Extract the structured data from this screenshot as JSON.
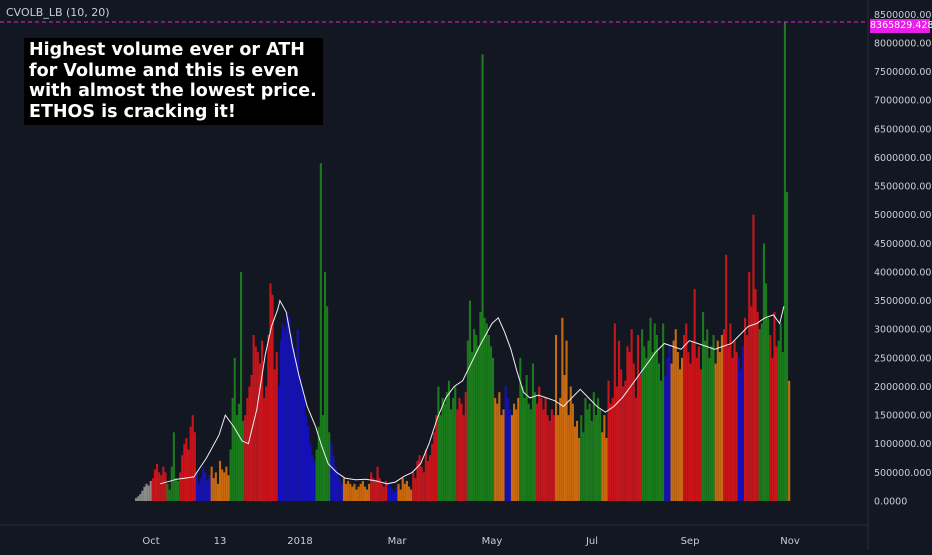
{
  "indicator": {
    "label": "CVOLB_LB (10, 20)"
  },
  "annotation": {
    "lines": [
      "Highest volume ever or ATH",
      "for Volume and this is even",
      "with almost the lowest price.",
      "ETHOS is cracking it!"
    ]
  },
  "colors": {
    "background": "#131722",
    "green": "#1b7a1b",
    "red": "#c8151b",
    "orange": "#c96a10",
    "blue": "#1511b8",
    "gray": "#8a8a8a",
    "ma_line": "#f0f0f0",
    "highlight": "#e91ee9",
    "axis_text": "#c9ccd6"
  },
  "chart_data": {
    "type": "bar",
    "ylim": [
      0,
      8400000
    ],
    "y_ticks": [
      "0.0000",
      "500000.0000",
      "1000000.0000",
      "1500000.0000",
      "2000000.0000",
      "2500000.0000",
      "3000000.0000",
      "3500000.0000",
      "4000000.0000",
      "4500000.0000",
      "5000000.0000",
      "5500000.0000",
      "6000000.0000",
      "6500000.0000",
      "7000000.0000",
      "7500000.0000",
      "8000000.0000",
      "8500000.0000"
    ],
    "x_labels": [
      "Oct",
      "13",
      "2018",
      "Mar",
      "May",
      "Jul",
      "Sep",
      "Nov"
    ],
    "last_value_label": "8365829.4288",
    "last_value": 8365829.4288,
    "bar_segments": [
      {
        "color": "gray",
        "start": 0,
        "values": [
          50000,
          80000,
          120000,
          180000,
          250000,
          300000,
          270000,
          350000
        ]
      },
      {
        "color": "red",
        "start": 8,
        "values": [
          400000,
          550000,
          650000,
          500000,
          450000,
          600000,
          500000
        ]
      },
      {
        "color": "green",
        "start": 15,
        "values": [
          300000,
          200000,
          600000,
          1200000,
          400000,
          350000
        ]
      },
      {
        "color": "red",
        "start": 21,
        "values": [
          500000,
          800000,
          1000000,
          1100000,
          900000,
          1300000,
          1500000,
          1200000
        ]
      },
      {
        "color": "blue",
        "start": 29,
        "values": [
          500000,
          300000,
          400000,
          600000,
          500000,
          350000,
          450000
        ]
      },
      {
        "color": "orange",
        "start": 36,
        "values": [
          600000,
          400000,
          500000,
          300000,
          700000,
          550000,
          500000,
          600000,
          450000
        ]
      },
      {
        "color": "green",
        "start": 45,
        "values": [
          900000,
          1800000,
          2500000,
          1500000,
          1700000,
          4000000,
          1400000
        ]
      },
      {
        "color": "red",
        "start": 52,
        "values": [
          1500000,
          1800000,
          2000000,
          2200000,
          2900000,
          2700000,
          2600000,
          2400000,
          2800000,
          1800000,
          2000000,
          2900000,
          3800000,
          3600000,
          2300000,
          2600000
        ]
      },
      {
        "color": "blue",
        "start": 68,
        "values": [
          2000000,
          2800000,
          3100000,
          3000000,
          3300000,
          3200000,
          2900000,
          2700000,
          2500000,
          3000000,
          2200000,
          2000000,
          1800000,
          1500000,
          1300000,
          1000000,
          800000,
          700000
        ]
      },
      {
        "color": "green",
        "start": 86,
        "values": [
          900000,
          1300000,
          5900000,
          1500000,
          4000000,
          3400000,
          1200000
        ]
      },
      {
        "color": "blue",
        "start": 93,
        "values": [
          1000000,
          800000,
          600000,
          500000,
          400000,
          300000
        ]
      },
      {
        "color": "orange",
        "start": 99,
        "values": [
          400000,
          300000,
          350000,
          300000,
          250000,
          300000,
          200000,
          250000,
          300000,
          350000,
          250000,
          200000,
          300000
        ]
      },
      {
        "color": "red",
        "start": 112,
        "values": [
          500000,
          400000,
          350000,
          600000,
          400000,
          300000,
          250000,
          350000
        ]
      },
      {
        "color": "blue",
        "start": 120,
        "values": [
          300000,
          250000,
          200000,
          150000,
          250000
        ]
      },
      {
        "color": "orange",
        "start": 125,
        "values": [
          300000,
          200000,
          400000,
          300000,
          350000,
          250000,
          200000
        ]
      },
      {
        "color": "red",
        "start": 132,
        "values": [
          500000,
          400000,
          700000,
          800000,
          600000,
          500000,
          900000,
          700000,
          800000,
          1000000,
          1200000,
          1500000
        ]
      },
      {
        "color": "green",
        "start": 144,
        "values": [
          2000000,
          1500000,
          1800000,
          1700000,
          1900000,
          2100000,
          1600000,
          1800000,
          2000000
        ]
      },
      {
        "color": "red",
        "start": 153,
        "values": [
          1600000,
          1800000,
          1700000,
          1500000,
          1900000
        ]
      },
      {
        "color": "green",
        "start": 158,
        "values": [
          2800000,
          3500000,
          2600000,
          3000000,
          2900000,
          2700000,
          3300000,
          7800000,
          3200000,
          3100000,
          2900000,
          2700000,
          2500000
        ]
      },
      {
        "color": "orange",
        "start": 171,
        "values": [
          1800000,
          1700000,
          1900000,
          1500000,
          1600000
        ]
      },
      {
        "color": "blue",
        "start": 176,
        "values": [
          2000000,
          1800000,
          1600000
        ]
      },
      {
        "color": "orange",
        "start": 179,
        "values": [
          1500000,
          1700000,
          1600000,
          1800000
        ]
      },
      {
        "color": "green",
        "start": 183,
        "values": [
          2500000,
          2000000,
          1800000,
          2200000,
          1700000,
          1600000,
          2400000,
          1900000
        ]
      },
      {
        "color": "red",
        "start": 191,
        "values": [
          1700000,
          2000000,
          1800000,
          1600000,
          1800000,
          1500000,
          1400000,
          1600000,
          1500000
        ]
      },
      {
        "color": "orange",
        "start": 200,
        "values": [
          2900000,
          1500000,
          1800000,
          3200000,
          2200000,
          2800000,
          1500000,
          2000000,
          1700000,
          1300000,
          1400000,
          1100000
        ]
      },
      {
        "color": "green",
        "start": 212,
        "values": [
          1500000,
          1200000,
          1800000,
          1600000,
          1700000,
          1400000,
          1900000,
          1500000,
          1800000,
          1600000
        ]
      },
      {
        "color": "orange",
        "start": 222,
        "values": [
          1200000,
          1500000,
          1100000
        ]
      },
      {
        "color": "red",
        "start": 225,
        "values": [
          2100000,
          1700000,
          1800000,
          3100000,
          2000000,
          2800000,
          2300000,
          2000000,
          2100000,
          2700000,
          2600000,
          3000000,
          2400000,
          1800000,
          2900000,
          2200000
        ]
      },
      {
        "color": "green",
        "start": 241,
        "values": [
          3000000,
          2700000,
          2500000,
          2800000,
          3200000,
          2600000,
          3100000,
          2900000,
          2400000,
          2100000,
          3100000
        ]
      },
      {
        "color": "blue",
        "start": 252,
        "values": [
          2200000,
          2500000,
          2700000
        ]
      },
      {
        "color": "orange",
        "start": 255,
        "values": [
          2400000,
          2800000,
          3000000,
          2600000,
          2300000,
          2500000
        ]
      },
      {
        "color": "red",
        "start": 261,
        "values": [
          2900000,
          3100000,
          2600000,
          2400000,
          2800000,
          3700000,
          2500000,
          2700000,
          2300000
        ]
      },
      {
        "color": "green",
        "start": 270,
        "values": [
          3300000,
          2800000,
          3000000,
          2500000,
          2700000,
          2900000
        ]
      },
      {
        "color": "orange",
        "start": 276,
        "values": [
          2400000,
          2800000,
          2600000,
          2900000
        ]
      },
      {
        "color": "red",
        "start": 280,
        "values": [
          3000000,
          4300000,
          2700000,
          3100000,
          2500000,
          2800000,
          2600000
        ]
      },
      {
        "color": "blue",
        "start": 287,
        "values": [
          2500000,
          2300000,
          2700000
        ]
      },
      {
        "color": "red",
        "start": 290,
        "values": [
          3200000,
          2900000,
          4000000,
          3400000,
          5000000,
          3700000,
          3300000
        ]
      },
      {
        "color": "green",
        "start": 297,
        "values": [
          3000000,
          3100000,
          4500000,
          3800000,
          3200000
        ]
      },
      {
        "color": "red",
        "start": 302,
        "values": [
          2900000,
          2500000,
          3300000,
          2700000
        ]
      },
      {
        "color": "green",
        "start": 306,
        "values": [
          2800000,
          3100000,
          2600000,
          8365829,
          5400000
        ]
      },
      {
        "color": "orange",
        "start": 311,
        "values": [
          2100000
        ]
      }
    ],
    "moving_average": [
      {
        "bar": 12,
        "value": 300000
      },
      {
        "bar": 20,
        "value": 380000
      },
      {
        "bar": 28,
        "value": 420000
      },
      {
        "bar": 34,
        "value": 750000
      },
      {
        "bar": 40,
        "value": 1150000
      },
      {
        "bar": 43,
        "value": 1500000
      },
      {
        "bar": 47,
        "value": 1300000
      },
      {
        "bar": 51,
        "value": 1050000
      },
      {
        "bar": 54,
        "value": 1000000
      },
      {
        "bar": 58,
        "value": 1600000
      },
      {
        "bar": 62,
        "value": 2550000
      },
      {
        "bar": 65,
        "value": 3050000
      },
      {
        "bar": 68,
        "value": 3350000
      },
      {
        "bar": 69,
        "value": 3500000
      },
      {
        "bar": 72,
        "value": 3300000
      },
      {
        "bar": 75,
        "value": 2700000
      },
      {
        "bar": 78,
        "value": 2200000
      },
      {
        "bar": 82,
        "value": 1650000
      },
      {
        "bar": 86,
        "value": 1300000
      },
      {
        "bar": 89,
        "value": 950000
      },
      {
        "bar": 92,
        "value": 650000
      },
      {
        "bar": 96,
        "value": 500000
      },
      {
        "bar": 100,
        "value": 400000
      },
      {
        "bar": 105,
        "value": 370000
      },
      {
        "bar": 110,
        "value": 380000
      },
      {
        "bar": 115,
        "value": 350000
      },
      {
        "bar": 120,
        "value": 300000
      },
      {
        "bar": 124,
        "value": 330000
      },
      {
        "bar": 128,
        "value": 430000
      },
      {
        "bar": 132,
        "value": 500000
      },
      {
        "bar": 136,
        "value": 650000
      },
      {
        "bar": 140,
        "value": 1000000
      },
      {
        "bar": 144,
        "value": 1450000
      },
      {
        "bar": 148,
        "value": 1800000
      },
      {
        "bar": 152,
        "value": 2000000
      },
      {
        "bar": 156,
        "value": 2100000
      },
      {
        "bar": 160,
        "value": 2400000
      },
      {
        "bar": 164,
        "value": 2700000
      },
      {
        "bar": 167,
        "value": 2900000
      },
      {
        "bar": 170,
        "value": 3100000
      },
      {
        "bar": 173,
        "value": 3200000
      },
      {
        "bar": 176,
        "value": 2950000
      },
      {
        "bar": 179,
        "value": 2650000
      },
      {
        "bar": 182,
        "value": 2250000
      },
      {
        "bar": 185,
        "value": 1900000
      },
      {
        "bar": 188,
        "value": 1800000
      },
      {
        "bar": 192,
        "value": 1850000
      },
      {
        "bar": 196,
        "value": 1800000
      },
      {
        "bar": 200,
        "value": 1750000
      },
      {
        "bar": 204,
        "value": 1650000
      },
      {
        "bar": 208,
        "value": 1800000
      },
      {
        "bar": 212,
        "value": 1950000
      },
      {
        "bar": 216,
        "value": 1800000
      },
      {
        "bar": 220,
        "value": 1650000
      },
      {
        "bar": 224,
        "value": 1550000
      },
      {
        "bar": 228,
        "value": 1650000
      },
      {
        "bar": 232,
        "value": 1800000
      },
      {
        "bar": 236,
        "value": 2000000
      },
      {
        "bar": 240,
        "value": 2200000
      },
      {
        "bar": 244,
        "value": 2400000
      },
      {
        "bar": 248,
        "value": 2600000
      },
      {
        "bar": 252,
        "value": 2750000
      },
      {
        "bar": 256,
        "value": 2700000
      },
      {
        "bar": 260,
        "value": 2650000
      },
      {
        "bar": 264,
        "value": 2800000
      },
      {
        "bar": 268,
        "value": 2750000
      },
      {
        "bar": 272,
        "value": 2700000
      },
      {
        "bar": 276,
        "value": 2650000
      },
      {
        "bar": 280,
        "value": 2700000
      },
      {
        "bar": 284,
        "value": 2750000
      },
      {
        "bar": 288,
        "value": 2900000
      },
      {
        "bar": 292,
        "value": 3050000
      },
      {
        "bar": 296,
        "value": 3100000
      },
      {
        "bar": 300,
        "value": 3200000
      },
      {
        "bar": 304,
        "value": 3250000
      },
      {
        "bar": 307,
        "value": 3100000
      },
      {
        "bar": 309,
        "value": 3400000
      }
    ]
  }
}
